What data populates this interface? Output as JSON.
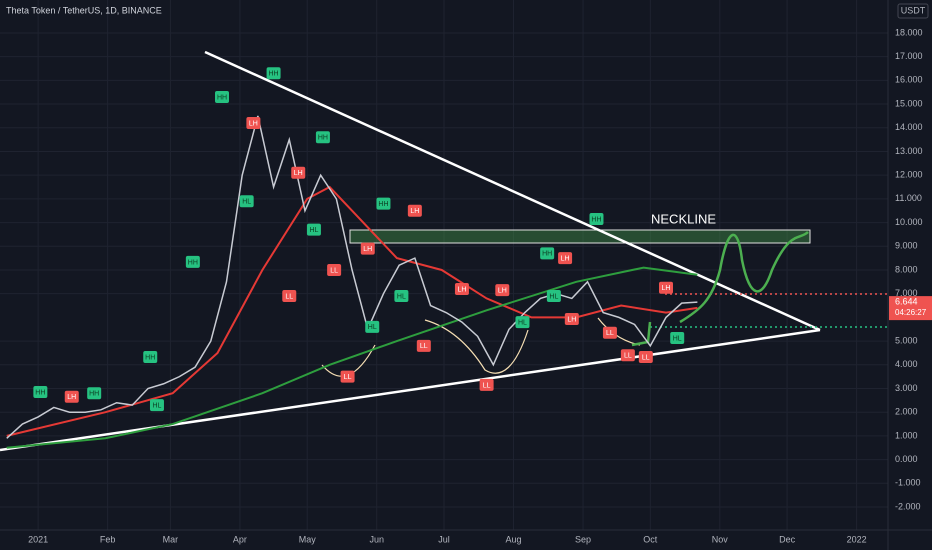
{
  "chart_data": {
    "type": "line",
    "title": "Theta Token / TetherUS, 1D, BINANCE",
    "currency": "USDT",
    "color": "#c8cbd3",
    "x": [
      -14,
      -7,
      0,
      7,
      14,
      21,
      28,
      35,
      42,
      49,
      56,
      63,
      70,
      77,
      84,
      91,
      98,
      105,
      112,
      119,
      126,
      133,
      140,
      147,
      154,
      161,
      168,
      175,
      182,
      189,
      196,
      203,
      210,
      217,
      224,
      231,
      238,
      245,
      252,
      259,
      266,
      273,
      280,
      287,
      294
    ],
    "values": [
      0.9,
      1.5,
      1.8,
      2.2,
      2.0,
      2.0,
      2.1,
      2.4,
      2.3,
      3.0,
      3.2,
      3.5,
      3.9,
      5.0,
      7.5,
      12,
      14.5,
      11.5,
      13.5,
      10.5,
      12,
      11,
      8,
      5.5,
      7,
      8.2,
      8.5,
      6.5,
      6.2,
      5.8,
      5.2,
      4.0,
      5.5,
      6.2,
      6.8,
      7.0,
      6.8,
      7.5,
      6.2,
      6.0,
      5.7,
      4.8,
      6.0,
      6.6,
      6.644
    ],
    "overlays": [
      {
        "color": "#e53935",
        "x": [
          -14,
          30,
          60,
          80,
          100,
          120,
          130,
          140,
          160,
          180,
          200,
          220,
          240,
          260,
          280,
          294
        ],
        "values": [
          1.0,
          2.0,
          2.8,
          4.5,
          8,
          11,
          11.5,
          10.5,
          8.5,
          8,
          6.8,
          6.0,
          6.0,
          6.5,
          6.2,
          6.4
        ]
      },
      {
        "color": "#2e9e3e",
        "x": [
          -14,
          30,
          60,
          100,
          130,
          160,
          200,
          240,
          270,
          294
        ],
        "values": [
          0.5,
          0.9,
          1.5,
          2.8,
          4,
          5,
          6.3,
          7.5,
          8.1,
          7.8
        ]
      }
    ],
    "last_price": 6.644,
    "countdown": "04:26:27",
    "xlim": [
      -17,
      379
    ],
    "ylim": [
      -2.97,
      19.39
    ],
    "xticks": [
      {
        "value": 0,
        "label": "2021"
      },
      {
        "value": 31,
        "label": "Feb"
      },
      {
        "value": 59,
        "label": "Mar"
      },
      {
        "value": 90,
        "label": "Apr"
      },
      {
        "value": 120,
        "label": "May"
      },
      {
        "value": 151,
        "label": "Jun"
      },
      {
        "value": 181,
        "label": "Jul"
      },
      {
        "value": 212,
        "label": "Aug"
      },
      {
        "value": 243,
        "label": "Sep"
      },
      {
        "value": 273,
        "label": "Oct"
      },
      {
        "value": 304,
        "label": "Nov"
      },
      {
        "value": 334,
        "label": "Dec"
      },
      {
        "value": 365,
        "label": "2022"
      }
    ],
    "yticks": [
      {
        "value": 18,
        "label": "18.000"
      },
      {
        "value": 17,
        "label": "17.000"
      },
      {
        "value": 16,
        "label": "16.000"
      },
      {
        "value": 15,
        "label": "15.000"
      },
      {
        "value": 14,
        "label": "14.000"
      },
      {
        "value": 13,
        "label": "13.000"
      },
      {
        "value": 12,
        "label": "12.000"
      },
      {
        "value": 11,
        "label": "11.000"
      },
      {
        "value": 10,
        "label": "10.000"
      },
      {
        "value": 9,
        "label": "9.000"
      },
      {
        "value": 8,
        "label": "8.000"
      },
      {
        "value": 7,
        "label": "7.000"
      },
      {
        "value": 5,
        "label": "5.000"
      },
      {
        "value": 4,
        "label": "4.000"
      },
      {
        "value": 3,
        "label": "3.000"
      },
      {
        "value": 2,
        "label": "2.000"
      },
      {
        "value": 1,
        "label": "1.000"
      },
      {
        "value": 0,
        "label": "0.000"
      },
      {
        "value": -1,
        "label": "-1.000"
      },
      {
        "value": -2,
        "label": "-2.000"
      }
    ],
    "grid": true,
    "neckline": {
      "label": "NECKLINE",
      "x": 273,
      "y": 10.1
    },
    "annotations": [
      {
        "label": "HH",
        "x": 1,
        "y": 2.85
      },
      {
        "label": "LH",
        "x": 15,
        "y": 2.65
      },
      {
        "label": "HH",
        "x": 25,
        "y": 2.8
      },
      {
        "label": "HH",
        "x": 50,
        "y": 4.33
      },
      {
        "label": "HL",
        "x": 53,
        "y": 2.3
      },
      {
        "label": "HH",
        "x": 69,
        "y": 8.34
      },
      {
        "label": "HH",
        "x": 82,
        "y": 15.3
      },
      {
        "label": "LH",
        "x": 96,
        "y": 14.2
      },
      {
        "label": "HL",
        "x": 93,
        "y": 10.9
      },
      {
        "label": "HH",
        "x": 105,
        "y": 16.3
      },
      {
        "label": "HH",
        "x": 127,
        "y": 13.6
      },
      {
        "label": "LH",
        "x": 116,
        "y": 12.1
      },
      {
        "label": "LL",
        "x": 112,
        "y": 6.9
      },
      {
        "label": "HL",
        "x": 123,
        "y": 9.7
      },
      {
        "label": "LL",
        "x": 132,
        "y": 8.0
      },
      {
        "label": "HH",
        "x": 154,
        "y": 10.8
      },
      {
        "label": "LH",
        "x": 168,
        "y": 10.5
      },
      {
        "label": "LH",
        "x": 147,
        "y": 8.9
      },
      {
        "label": "HL",
        "x": 162,
        "y": 6.9
      },
      {
        "label": "HL",
        "x": 149,
        "y": 5.6
      },
      {
        "label": "LL",
        "x": 138,
        "y": 3.5
      },
      {
        "label": "LL",
        "x": 172,
        "y": 4.8
      },
      {
        "label": "LH",
        "x": 189,
        "y": 7.2
      },
      {
        "label": "LH",
        "x": 207,
        "y": 7.15
      },
      {
        "label": "HL",
        "x": 216,
        "y": 5.8
      },
      {
        "label": "HH",
        "x": 227,
        "y": 8.7
      },
      {
        "label": "LH",
        "x": 235,
        "y": 8.5
      },
      {
        "label": "HL",
        "x": 230,
        "y": 6.9
      },
      {
        "label": "LL",
        "x": 200,
        "y": 3.15
      },
      {
        "label": "HH",
        "x": 249,
        "y": 10.15
      },
      {
        "label": "LH",
        "x": 238,
        "y": 5.93
      },
      {
        "label": "LL",
        "x": 255,
        "y": 5.35
      },
      {
        "label": "LL",
        "x": 263,
        "y": 4.4
      },
      {
        "label": "LL",
        "x": 271,
        "y": 4.33
      },
      {
        "label": "LH",
        "x": 280,
        "y": 7.25
      },
      {
        "label": "HL",
        "x": 285,
        "y": 5.13
      }
    ]
  }
}
